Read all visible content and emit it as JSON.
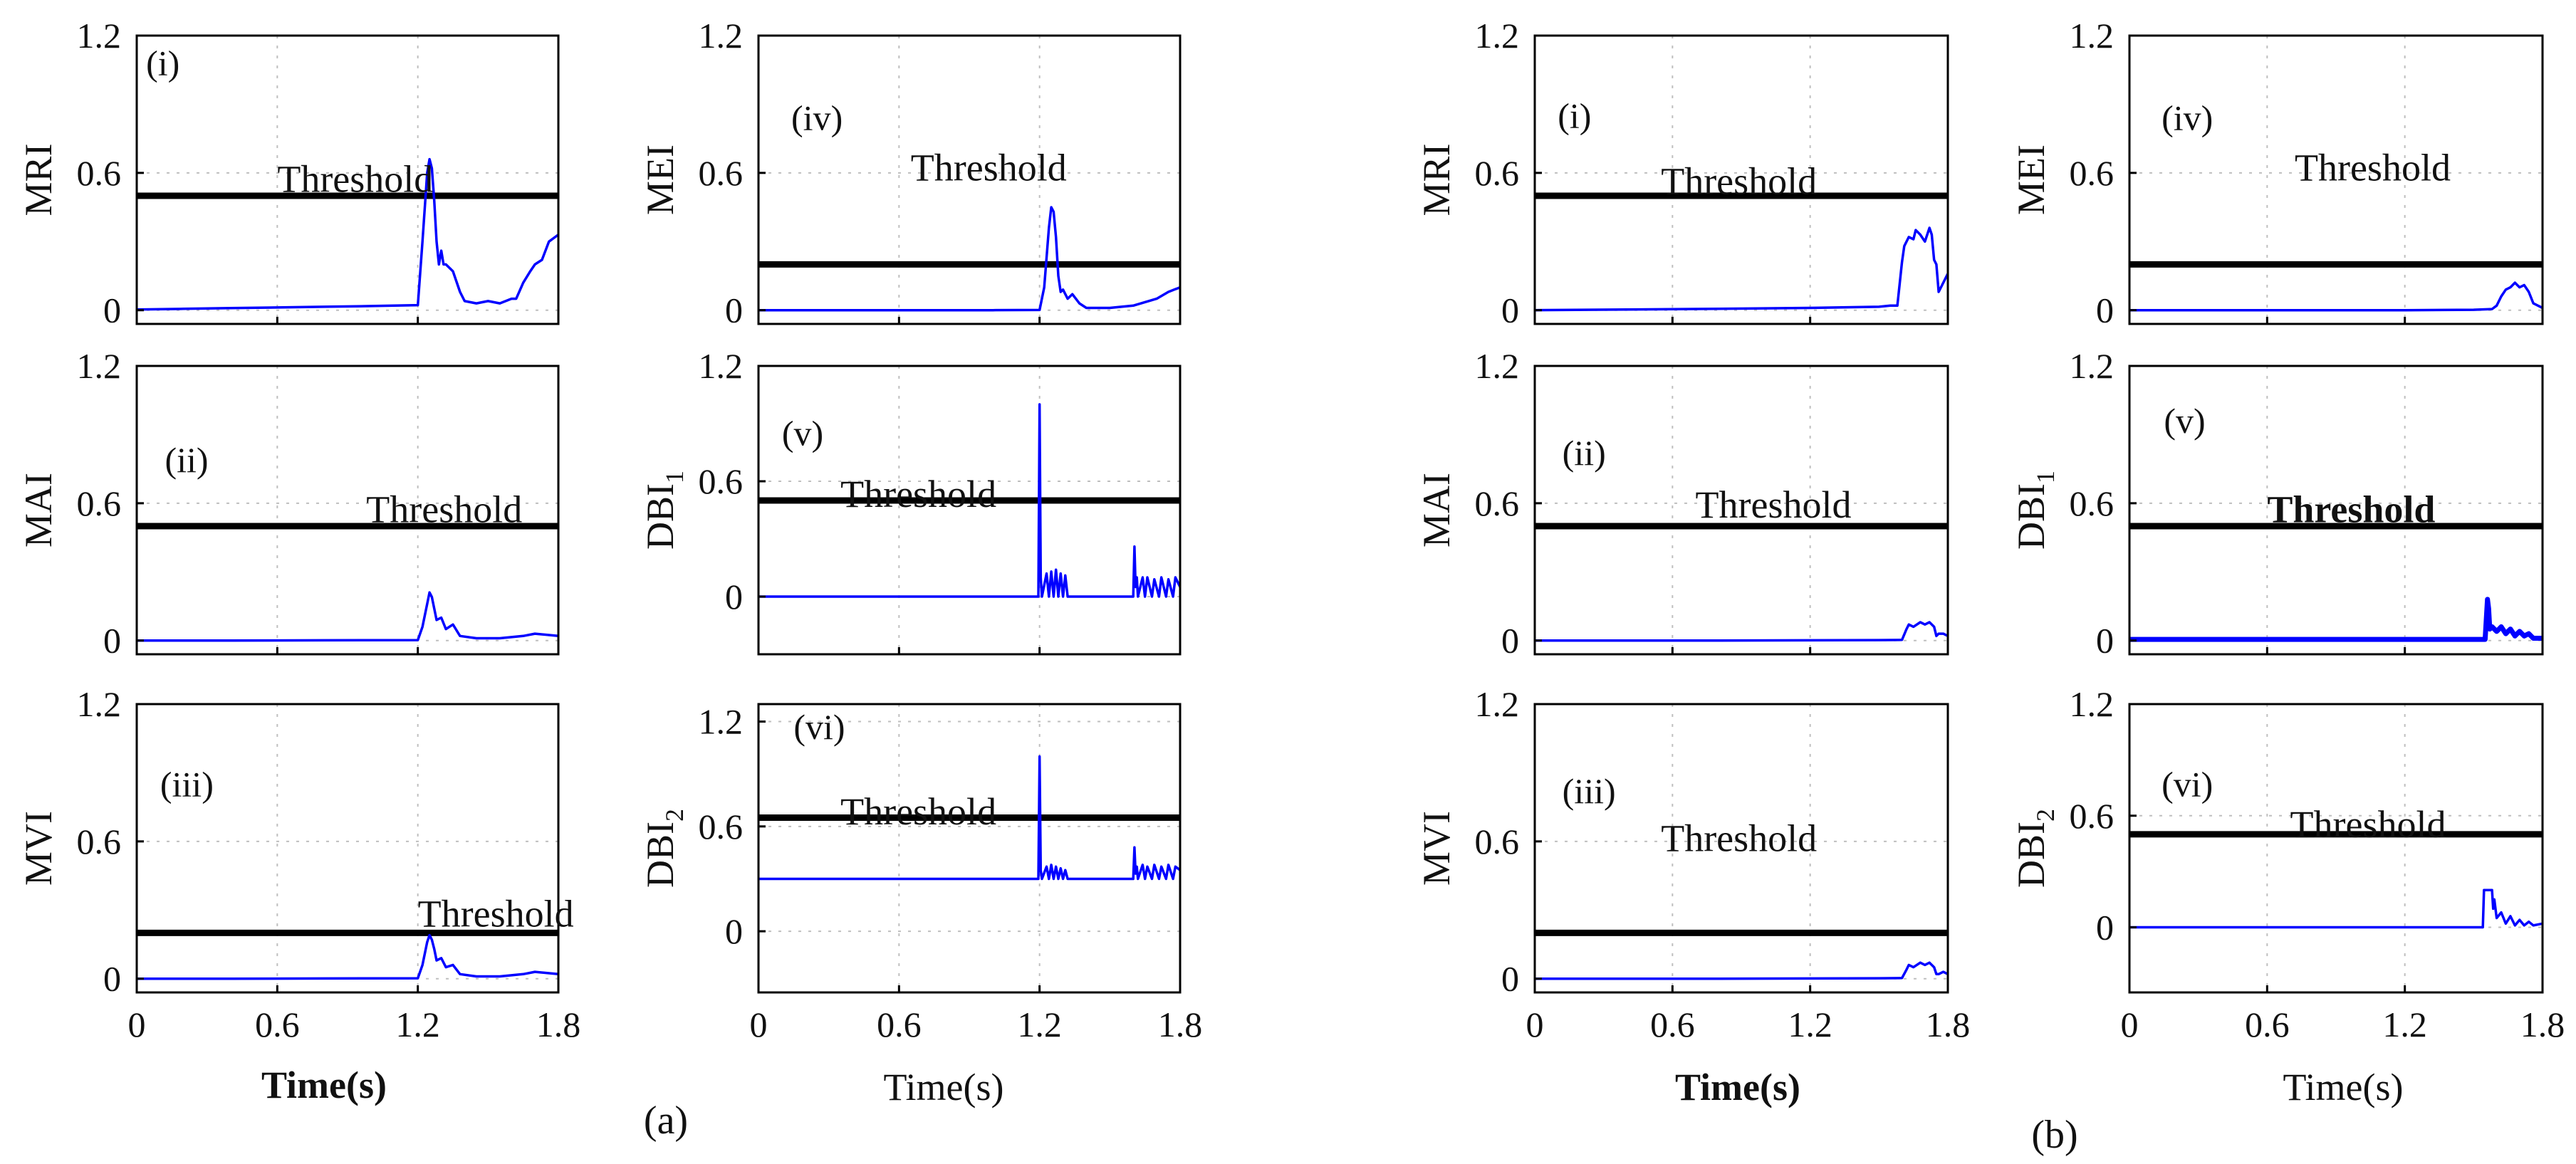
{
  "chart_data": [
    {
      "group": "a",
      "panel": "(i)",
      "type": "line",
      "ylabel": "MRI",
      "ylabel_sub": "",
      "ylim": [
        -0.06,
        1.2
      ],
      "yticks": [
        0,
        0.6,
        1.2
      ],
      "xlim": [
        0,
        1.8
      ],
      "xticks": [
        0,
        0.6,
        1.2,
        1.8
      ],
      "threshold": 0.5,
      "threshold_label": "Threshold",
      "tag_pos": [
        0.04,
        1.08
      ],
      "label_pos": [
        0.6,
        0.57
      ],
      "threshold_bold": false,
      "series": {
        "x": [
          0,
          0.2,
          0.4,
          0.6,
          0.8,
          1.0,
          1.2,
          1.22,
          1.24,
          1.25,
          1.26,
          1.27,
          1.28,
          1.29,
          1.3,
          1.31,
          1.32,
          1.33,
          1.35,
          1.38,
          1.4,
          1.45,
          1.5,
          1.55,
          1.6,
          1.62,
          1.65,
          1.68,
          1.7,
          1.73,
          1.76,
          1.8
        ],
        "y": [
          0.003,
          0.006,
          0.009,
          0.012,
          0.015,
          0.018,
          0.022,
          0.3,
          0.6,
          0.66,
          0.62,
          0.48,
          0.3,
          0.2,
          0.26,
          0.2,
          0.2,
          0.19,
          0.17,
          0.08,
          0.04,
          0.03,
          0.04,
          0.03,
          0.05,
          0.05,
          0.12,
          0.17,
          0.2,
          0.22,
          0.3,
          0.33
        ]
      }
    },
    {
      "group": "a",
      "panel": "(ii)",
      "type": "line",
      "ylabel": "MAI",
      "ylabel_sub": "",
      "ylim": [
        -0.06,
        1.2
      ],
      "yticks": [
        0,
        0.6,
        1.2
      ],
      "xlim": [
        0,
        1.8
      ],
      "xticks": [
        0,
        0.6,
        1.2,
        1.8
      ],
      "threshold": 0.5,
      "threshold_label": "Threshold",
      "tag_pos": [
        0.12,
        0.79
      ],
      "label_pos": [
        0.98,
        0.57
      ],
      "threshold_bold": false,
      "series": {
        "x": [
          0,
          0.4,
          0.8,
          1.2,
          1.22,
          1.24,
          1.25,
          1.26,
          1.27,
          1.28,
          1.3,
          1.32,
          1.35,
          1.38,
          1.45,
          1.55,
          1.65,
          1.7,
          1.8
        ],
        "y": [
          0,
          0,
          0.001,
          0.002,
          0.06,
          0.16,
          0.21,
          0.19,
          0.14,
          0.09,
          0.1,
          0.05,
          0.07,
          0.02,
          0.01,
          0.01,
          0.02,
          0.03,
          0.02
        ]
      }
    },
    {
      "group": "a",
      "panel": "(iii)",
      "type": "line",
      "ylabel": "MVI",
      "ylabel_sub": "",
      "ylim": [
        -0.06,
        1.2
      ],
      "yticks": [
        0,
        0.6,
        1.2
      ],
      "xlim": [
        0,
        1.8
      ],
      "xticks": [
        0,
        0.6,
        1.2,
        1.8
      ],
      "threshold": 0.2,
      "threshold_label": "Threshold",
      "tag_pos": [
        0.1,
        0.85
      ],
      "label_pos": [
        1.2,
        0.28
      ],
      "threshold_bold": false,
      "series": {
        "x": [
          0,
          0.4,
          0.8,
          1.2,
          1.22,
          1.24,
          1.25,
          1.26,
          1.27,
          1.28,
          1.3,
          1.32,
          1.35,
          1.38,
          1.45,
          1.55,
          1.65,
          1.7,
          1.8
        ],
        "y": [
          0,
          0,
          0.001,
          0.002,
          0.06,
          0.16,
          0.19,
          0.17,
          0.13,
          0.08,
          0.09,
          0.05,
          0.06,
          0.02,
          0.01,
          0.01,
          0.02,
          0.03,
          0.02
        ]
      }
    },
    {
      "group": "a",
      "panel": "(iv)",
      "type": "line",
      "ylabel": "MEI",
      "ylabel_sub": "",
      "ylim": [
        -0.06,
        1.2
      ],
      "yticks": [
        0,
        0.6,
        1.2
      ],
      "xlim": [
        0,
        1.8
      ],
      "xticks": [
        0,
        0.6,
        1.2,
        1.8
      ],
      "threshold": 0.2,
      "threshold_label": "Threshold",
      "tag_pos": [
        0.14,
        0.84
      ],
      "label_pos": [
        0.65,
        0.62
      ],
      "threshold_bold": false,
      "series": {
        "x": [
          0,
          0.6,
          1.0,
          1.2,
          1.22,
          1.24,
          1.25,
          1.26,
          1.27,
          1.28,
          1.29,
          1.3,
          1.32,
          1.34,
          1.37,
          1.4,
          1.5,
          1.6,
          1.7,
          1.75,
          1.8
        ],
        "y": [
          0,
          0,
          0,
          0.001,
          0.1,
          0.36,
          0.45,
          0.43,
          0.32,
          0.15,
          0.08,
          0.09,
          0.05,
          0.07,
          0.03,
          0.01,
          0.01,
          0.02,
          0.05,
          0.08,
          0.1
        ]
      }
    },
    {
      "group": "a",
      "panel": "(v)",
      "type": "line",
      "ylabel": "DBI",
      "ylabel_sub": "1",
      "ylim": [
        -0.3,
        1.2
      ],
      "yticks": [
        0,
        0.6,
        1.2
      ],
      "xlim": [
        0,
        1.8
      ],
      "xticks": [
        0,
        0.6,
        1.2,
        1.8
      ],
      "threshold": 0.5,
      "threshold_label": "Threshold",
      "tag_pos": [
        0.1,
        0.85
      ],
      "label_pos": [
        0.35,
        0.53
      ],
      "threshold_bold": false,
      "series": {
        "x": [
          0,
          1.195,
          1.2,
          1.205,
          1.21,
          1.23,
          1.24,
          1.25,
          1.26,
          1.27,
          1.28,
          1.29,
          1.3,
          1.31,
          1.32,
          1.6,
          1.605,
          1.61,
          1.615,
          1.62,
          1.64,
          1.65,
          1.66,
          1.68,
          1.69,
          1.71,
          1.72,
          1.74,
          1.75,
          1.77,
          1.78,
          1.8
        ],
        "y": [
          0,
          0,
          1.0,
          0.1,
          0,
          0.12,
          0,
          0.13,
          0,
          0.14,
          0,
          0.12,
          0,
          0.11,
          0,
          0,
          0.26,
          0.05,
          0.1,
          0,
          0.1,
          0,
          0.1,
          0,
          0.09,
          0,
          0.1,
          0,
          0.09,
          0,
          0.1,
          0.05
        ]
      }
    },
    {
      "group": "a",
      "panel": "(vi)",
      "type": "line",
      "ylabel": "DBI",
      "ylabel_sub": "2",
      "ylim": [
        -0.35,
        1.3
      ],
      "yticks": [
        0,
        0.6,
        1.2
      ],
      "xlim": [
        0,
        1.8
      ],
      "xticks": [
        0,
        0.6,
        1.2,
        1.8
      ],
      "threshold": 0.65,
      "threshold_label": "Threshold",
      "tag_pos": [
        0.15,
        1.17
      ],
      "label_pos": [
        0.35,
        0.68
      ],
      "threshold_bold": false,
      "series": {
        "x": [
          0,
          1.195,
          1.2,
          1.205,
          1.21,
          1.23,
          1.24,
          1.25,
          1.26,
          1.27,
          1.28,
          1.29,
          1.3,
          1.31,
          1.32,
          1.6,
          1.605,
          1.61,
          1.615,
          1.62,
          1.64,
          1.65,
          1.66,
          1.68,
          1.69,
          1.71,
          1.72,
          1.74,
          1.75,
          1.77,
          1.78,
          1.8
        ],
        "y": [
          0.3,
          0.3,
          1.0,
          0.35,
          0.3,
          0.37,
          0.3,
          0.38,
          0.3,
          0.37,
          0.3,
          0.36,
          0.3,
          0.35,
          0.3,
          0.3,
          0.48,
          0.33,
          0.37,
          0.3,
          0.38,
          0.3,
          0.37,
          0.3,
          0.38,
          0.3,
          0.37,
          0.3,
          0.38,
          0.3,
          0.37,
          0.35
        ]
      }
    },
    {
      "group": "b",
      "panel": "(i)",
      "type": "line",
      "ylabel": "MRI",
      "ylabel_sub": "",
      "ylim": [
        -0.06,
        1.2
      ],
      "yticks": [
        0,
        0.6,
        1.2
      ],
      "xlim": [
        0,
        1.8
      ],
      "xticks": [
        0,
        0.6,
        1.2,
        1.8
      ],
      "threshold": 0.5,
      "threshold_label": "Threshold",
      "tag_pos": [
        0.1,
        0.85
      ],
      "label_pos": [
        0.55,
        0.56
      ],
      "threshold_bold": false,
      "series": {
        "x": [
          0,
          0.4,
          0.8,
          1.2,
          1.5,
          1.55,
          1.58,
          1.6,
          1.61,
          1.63,
          1.65,
          1.66,
          1.68,
          1.7,
          1.72,
          1.73,
          1.74,
          1.75,
          1.76,
          1.78,
          1.8
        ],
        "y": [
          0,
          0.003,
          0.006,
          0.01,
          0.015,
          0.02,
          0.02,
          0.21,
          0.28,
          0.32,
          0.31,
          0.35,
          0.33,
          0.3,
          0.36,
          0.33,
          0.22,
          0.2,
          0.08,
          0.12,
          0.16
        ]
      }
    },
    {
      "group": "b",
      "panel": "(ii)",
      "type": "line",
      "ylabel": "MAI",
      "ylabel_sub": "",
      "ylim": [
        -0.06,
        1.2
      ],
      "yticks": [
        0,
        0.6,
        1.2
      ],
      "xlim": [
        0,
        1.8
      ],
      "xticks": [
        0,
        0.6,
        1.2,
        1.8
      ],
      "threshold": 0.5,
      "threshold_label": "Threshold",
      "tag_pos": [
        0.12,
        0.82
      ],
      "label_pos": [
        0.7,
        0.59
      ],
      "threshold_bold": false,
      "series": {
        "x": [
          0,
          0.4,
          0.8,
          1.2,
          1.5,
          1.6,
          1.62,
          1.63,
          1.65,
          1.68,
          1.7,
          1.72,
          1.74,
          1.75,
          1.76,
          1.78,
          1.8
        ],
        "y": [
          0,
          0,
          0,
          0.001,
          0.002,
          0.003,
          0.05,
          0.07,
          0.06,
          0.08,
          0.07,
          0.08,
          0.06,
          0.02,
          0.03,
          0.03,
          0.02
        ]
      }
    },
    {
      "group": "b",
      "panel": "(iii)",
      "type": "line",
      "ylabel": "MVI",
      "ylabel_sub": "",
      "ylim": [
        -0.06,
        1.2
      ],
      "yticks": [
        0,
        0.6,
        1.2
      ],
      "xlim": [
        0,
        1.8
      ],
      "xticks": [
        0,
        0.6,
        1.2,
        1.8
      ],
      "threshold": 0.2,
      "threshold_label": "Threshold",
      "tag_pos": [
        0.12,
        0.82
      ],
      "label_pos": [
        0.55,
        0.61
      ],
      "threshold_bold": false,
      "series": {
        "x": [
          0,
          0.4,
          0.8,
          1.2,
          1.5,
          1.6,
          1.62,
          1.63,
          1.65,
          1.68,
          1.7,
          1.72,
          1.74,
          1.75,
          1.76,
          1.78,
          1.8
        ],
        "y": [
          0,
          0,
          0,
          0.001,
          0.002,
          0.003,
          0.04,
          0.06,
          0.05,
          0.07,
          0.06,
          0.07,
          0.05,
          0.02,
          0.02,
          0.03,
          0.02
        ]
      }
    },
    {
      "group": "b",
      "panel": "(iv)",
      "type": "line",
      "ylabel": "MEI",
      "ylabel_sub": "",
      "ylim": [
        -0.06,
        1.2
      ],
      "yticks": [
        0,
        0.6,
        1.2
      ],
      "xlim": [
        0,
        1.8
      ],
      "xticks": [
        0,
        0.6,
        1.2,
        1.8
      ],
      "threshold": 0.2,
      "threshold_label": "Threshold",
      "tag_pos": [
        0.14,
        0.84
      ],
      "label_pos": [
        0.72,
        0.62
      ],
      "threshold_bold": false,
      "series": {
        "x": [
          0,
          0.6,
          1.2,
          1.5,
          1.58,
          1.6,
          1.62,
          1.64,
          1.66,
          1.68,
          1.7,
          1.72,
          1.74,
          1.76,
          1.78,
          1.8
        ],
        "y": [
          0,
          0,
          0,
          0.002,
          0.005,
          0.02,
          0.06,
          0.09,
          0.1,
          0.12,
          0.1,
          0.11,
          0.08,
          0.03,
          0.02,
          0.01
        ]
      }
    },
    {
      "group": "b",
      "panel": "(v)",
      "type": "line",
      "ylabel": "DBI",
      "ylabel_sub": "1",
      "ylim": [
        -0.06,
        1.2
      ],
      "yticks": [
        0,
        0.6,
        1.2
      ],
      "xlim": [
        0,
        1.8
      ],
      "xticks": [
        0,
        0.6,
        1.2,
        1.8
      ],
      "threshold": 0.5,
      "threshold_label": "Threshold",
      "tag_pos": [
        0.15,
        0.96
      ],
      "label_pos": [
        0.6,
        0.57
      ],
      "threshold_bold": true,
      "series": {
        "x": [
          0,
          0.2,
          0.4,
          0.6,
          0.8,
          1.0,
          1.2,
          1.4,
          1.55,
          1.56,
          1.565,
          1.57,
          1.58,
          1.6,
          1.62,
          1.64,
          1.66,
          1.68,
          1.7,
          1.72,
          1.74,
          1.76,
          1.8
        ],
        "y": [
          0.005,
          0.005,
          0.005,
          0.005,
          0.005,
          0.005,
          0.005,
          0.005,
          0.005,
          0.18,
          0.14,
          0.05,
          0.06,
          0.04,
          0.06,
          0.03,
          0.05,
          0.02,
          0.04,
          0.02,
          0.03,
          0.01,
          0.01
        ]
      }
    },
    {
      "group": "b",
      "panel": "(vi)",
      "type": "line",
      "ylabel": "DBI",
      "ylabel_sub": "2",
      "ylim": [
        -0.35,
        1.2
      ],
      "yticks": [
        0,
        0.6,
        1.2
      ],
      "xlim": [
        0,
        1.8
      ],
      "xticks": [
        0,
        0.6,
        1.2,
        1.8
      ],
      "threshold": 0.5,
      "threshold_label": "Threshold",
      "tag_pos": [
        0.14,
        0.77
      ],
      "label_pos": [
        0.7,
        0.55
      ],
      "threshold_bold": false,
      "series": {
        "x": [
          0,
          1.5,
          1.54,
          1.545,
          1.55,
          1.58,
          1.585,
          1.59,
          1.6,
          1.62,
          1.64,
          1.66,
          1.68,
          1.7,
          1.72,
          1.74,
          1.76,
          1.8
        ],
        "y": [
          0,
          0,
          0,
          0.2,
          0.2,
          0.2,
          0.1,
          0.15,
          0.05,
          0.08,
          0.02,
          0.06,
          0.01,
          0.04,
          0.01,
          0.03,
          0.01,
          0.02
        ]
      }
    }
  ],
  "x_axis_label": "Time(s)",
  "figure_labels": [
    "(a)",
    "(b)"
  ],
  "colors": {
    "series": "#0000ff",
    "threshold": "#000000",
    "grid": "#bfbfbf",
    "axes": "#000000"
  }
}
